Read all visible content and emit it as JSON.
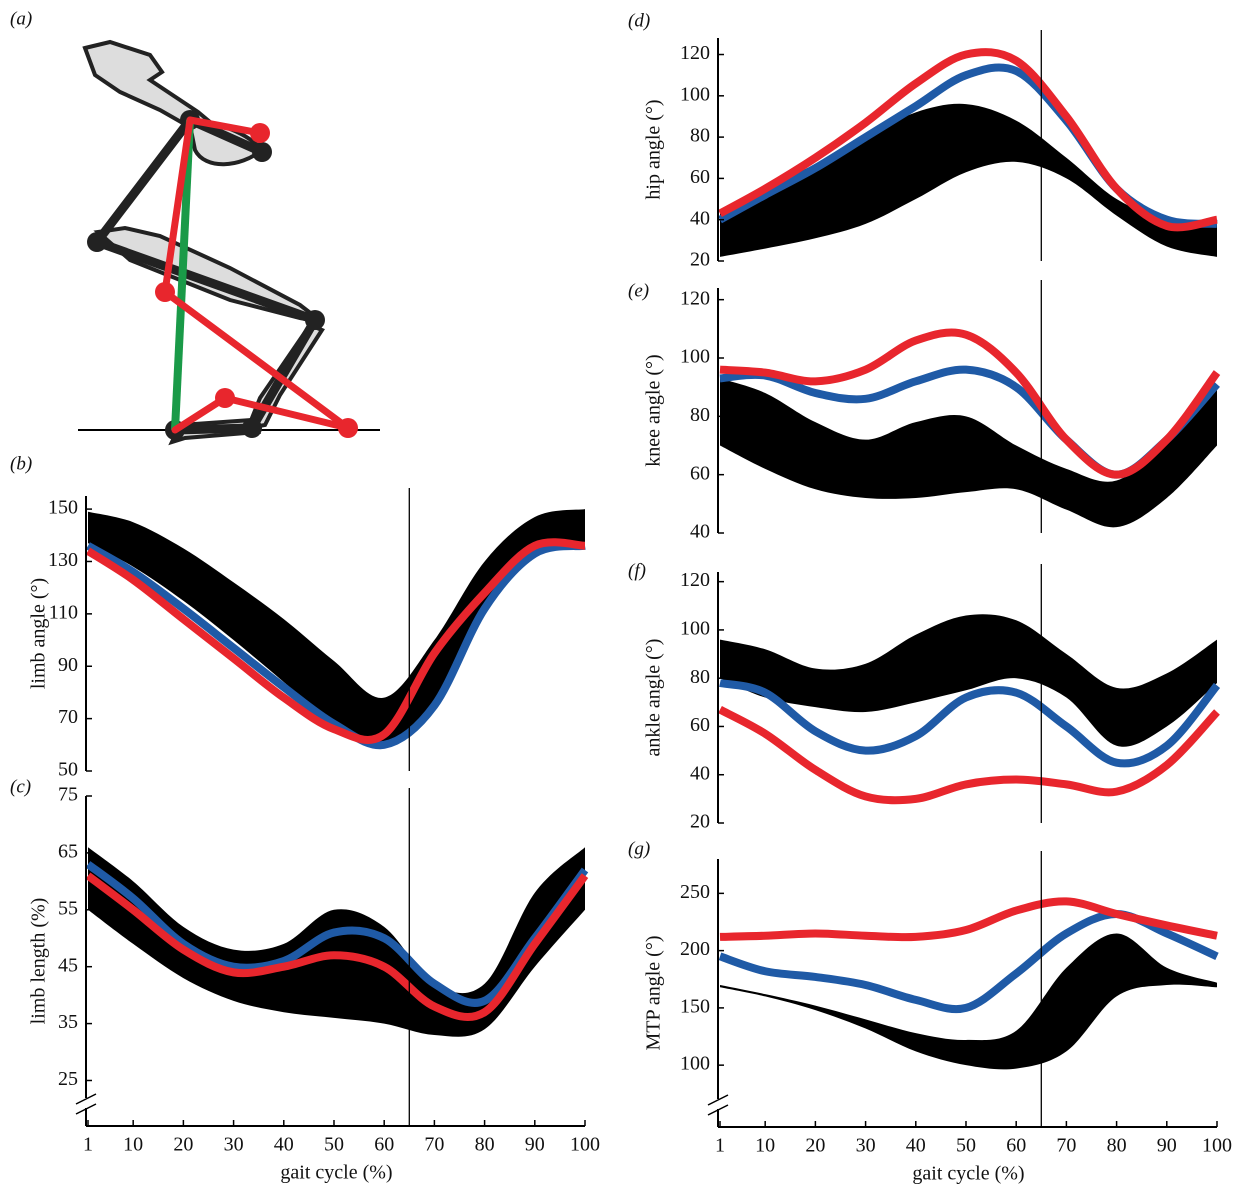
{
  "diagram": {
    "label": "(a)"
  },
  "chart_data": [
    {
      "type": "line",
      "label": "(b)",
      "ylabel": "limb angle (°)",
      "x": [
        1,
        10,
        20,
        30,
        40,
        50,
        60,
        70,
        80,
        90,
        100
      ],
      "xlim": [
        1,
        100
      ],
      "ylim": [
        50,
        155
      ],
      "yticks": [
        50,
        70,
        90,
        110,
        130,
        150
      ],
      "vline": 65,
      "band": {
        "color": "#000000",
        "upper": [
          149,
          145,
          135,
          122,
          108,
          92,
          78,
          100,
          130,
          147,
          150
        ],
        "lower": [
          137,
          128,
          115,
          100,
          84,
          68,
          59,
          74,
          110,
          132,
          135
        ]
      },
      "series": [
        {
          "color": "#1f5aa6",
          "values": [
            136,
            126,
            112,
            97,
            82,
            68,
            60,
            75,
            112,
            133,
            136
          ]
        },
        {
          "color": "#e8262d",
          "values": [
            134,
            123,
            108,
            93,
            78,
            66,
            64,
            95,
            118,
            136,
            136
          ]
        }
      ]
    },
    {
      "type": "line",
      "label": "(c)",
      "ylabel": "limb length (%)",
      "xlabel": "gait cycle (%)",
      "x": [
        1,
        10,
        20,
        30,
        40,
        50,
        60,
        70,
        80,
        90,
        100
      ],
      "xlim": [
        1,
        100
      ],
      "xticks": [
        1,
        10,
        20,
        30,
        40,
        50,
        60,
        70,
        80,
        90,
        100
      ],
      "ylim": [
        17,
        75
      ],
      "yticks": [
        25,
        35,
        45,
        55,
        65,
        75
      ],
      "vline": 65,
      "axis_break": true,
      "band": {
        "color": "#000000",
        "upper": [
          66,
          60,
          52,
          48,
          49,
          55,
          52,
          42,
          42,
          58,
          66
        ],
        "lower": [
          55,
          49,
          43,
          39,
          37,
          36,
          35,
          33,
          34,
          45,
          55
        ]
      },
      "series": [
        {
          "color": "#1f5aa6",
          "values": [
            63,
            57,
            49,
            45,
            46,
            51,
            50,
            42,
            39,
            50,
            62
          ]
        },
        {
          "color": "#e8262d",
          "values": [
            61,
            55,
            48,
            44,
            45,
            47,
            45,
            38,
            37,
            49,
            61
          ]
        }
      ]
    },
    {
      "type": "line",
      "label": "(d)",
      "ylabel": "hip angle (°)",
      "x": [
        1,
        10,
        20,
        30,
        40,
        50,
        60,
        70,
        80,
        90,
        100
      ],
      "xlim": [
        1,
        100
      ],
      "ylim": [
        20,
        128
      ],
      "yticks": [
        20,
        40,
        60,
        80,
        100,
        120
      ],
      "vline": 65,
      "band": {
        "color": "#000000",
        "upper": [
          44,
          55,
          67,
          80,
          92,
          96,
          88,
          70,
          50,
          40,
          38
        ],
        "lower": [
          22,
          26,
          31,
          38,
          50,
          63,
          68,
          60,
          42,
          27,
          22
        ]
      },
      "series": [
        {
          "color": "#1f5aa6",
          "values": [
            40,
            52,
            65,
            80,
            95,
            110,
            112,
            88,
            55,
            40,
            38
          ]
        },
        {
          "color": "#e8262d",
          "values": [
            43,
            55,
            70,
            87,
            106,
            120,
            117,
            90,
            55,
            37,
            40
          ]
        }
      ]
    },
    {
      "type": "line",
      "label": "(e)",
      "ylabel": "knee angle (°)",
      "x": [
        1,
        10,
        20,
        30,
        40,
        50,
        60,
        70,
        80,
        90,
        100
      ],
      "xlim": [
        1,
        100
      ],
      "ylim": [
        40,
        124
      ],
      "yticks": [
        40,
        60,
        80,
        100,
        120
      ],
      "vline": 65,
      "band": {
        "color": "#000000",
        "upper": [
          93,
          88,
          78,
          72,
          78,
          80,
          70,
          62,
          58,
          72,
          90
        ],
        "lower": [
          70,
          62,
          55,
          52,
          52,
          54,
          55,
          48,
          42,
          52,
          70
        ]
      },
      "series": [
        {
          "color": "#1f5aa6",
          "values": [
            93,
            94,
            88,
            86,
            92,
            96,
            90,
            72,
            60,
            72,
            91
          ]
        },
        {
          "color": "#e8262d",
          "values": [
            96,
            95,
            92,
            96,
            106,
            108,
            95,
            72,
            60,
            72,
            95
          ]
        }
      ]
    },
    {
      "type": "line",
      "label": "(f)",
      "ylabel": "ankle angle (°)",
      "x": [
        1,
        10,
        20,
        30,
        40,
        50,
        60,
        70,
        80,
        90,
        100
      ],
      "xlim": [
        1,
        100
      ],
      "ylim": [
        20,
        124
      ],
      "yticks": [
        20,
        40,
        60,
        80,
        100,
        120
      ],
      "vline": 65,
      "band": {
        "color": "#000000",
        "upper": [
          96,
          92,
          84,
          86,
          98,
          106,
          104,
          90,
          76,
          82,
          96
        ],
        "lower": [
          80,
          72,
          68,
          66,
          70,
          75,
          80,
          72,
          52,
          60,
          78
        ]
      },
      "series": [
        {
          "color": "#1f5aa6",
          "values": [
            78,
            74,
            58,
            50,
            56,
            72,
            74,
            60,
            45,
            52,
            77
          ]
        },
        {
          "color": "#e8262d",
          "values": [
            67,
            57,
            42,
            31,
            30,
            36,
            38,
            36,
            33,
            44,
            66
          ]
        }
      ]
    },
    {
      "type": "line",
      "label": "(g)",
      "ylabel": "MTP angle (°)",
      "xlabel": "gait cycle (%)",
      "x": [
        1,
        10,
        20,
        30,
        40,
        50,
        60,
        70,
        80,
        90,
        100
      ],
      "xlim": [
        1,
        100
      ],
      "xticks": [
        1,
        10,
        20,
        30,
        40,
        50,
        60,
        70,
        80,
        90,
        100
      ],
      "ylim": [
        46,
        280
      ],
      "yticks": [
        100,
        150,
        200,
        250
      ],
      "vline": 65,
      "axis_break": true,
      "band": {
        "color": "#000000",
        "upper": [
          170,
          162,
          152,
          140,
          128,
          122,
          130,
          185,
          215,
          185,
          172
        ],
        "lower": [
          168,
          160,
          148,
          132,
          112,
          100,
          97,
          112,
          160,
          170,
          168
        ]
      },
      "series": [
        {
          "color": "#1f5aa6",
          "values": [
            195,
            182,
            177,
            170,
            157,
            150,
            180,
            215,
            232,
            215,
            195
          ]
        },
        {
          "color": "#e8262d",
          "values": [
            212,
            213,
            215,
            213,
            212,
            218,
            235,
            243,
            232,
            222,
            213
          ]
        }
      ]
    }
  ]
}
